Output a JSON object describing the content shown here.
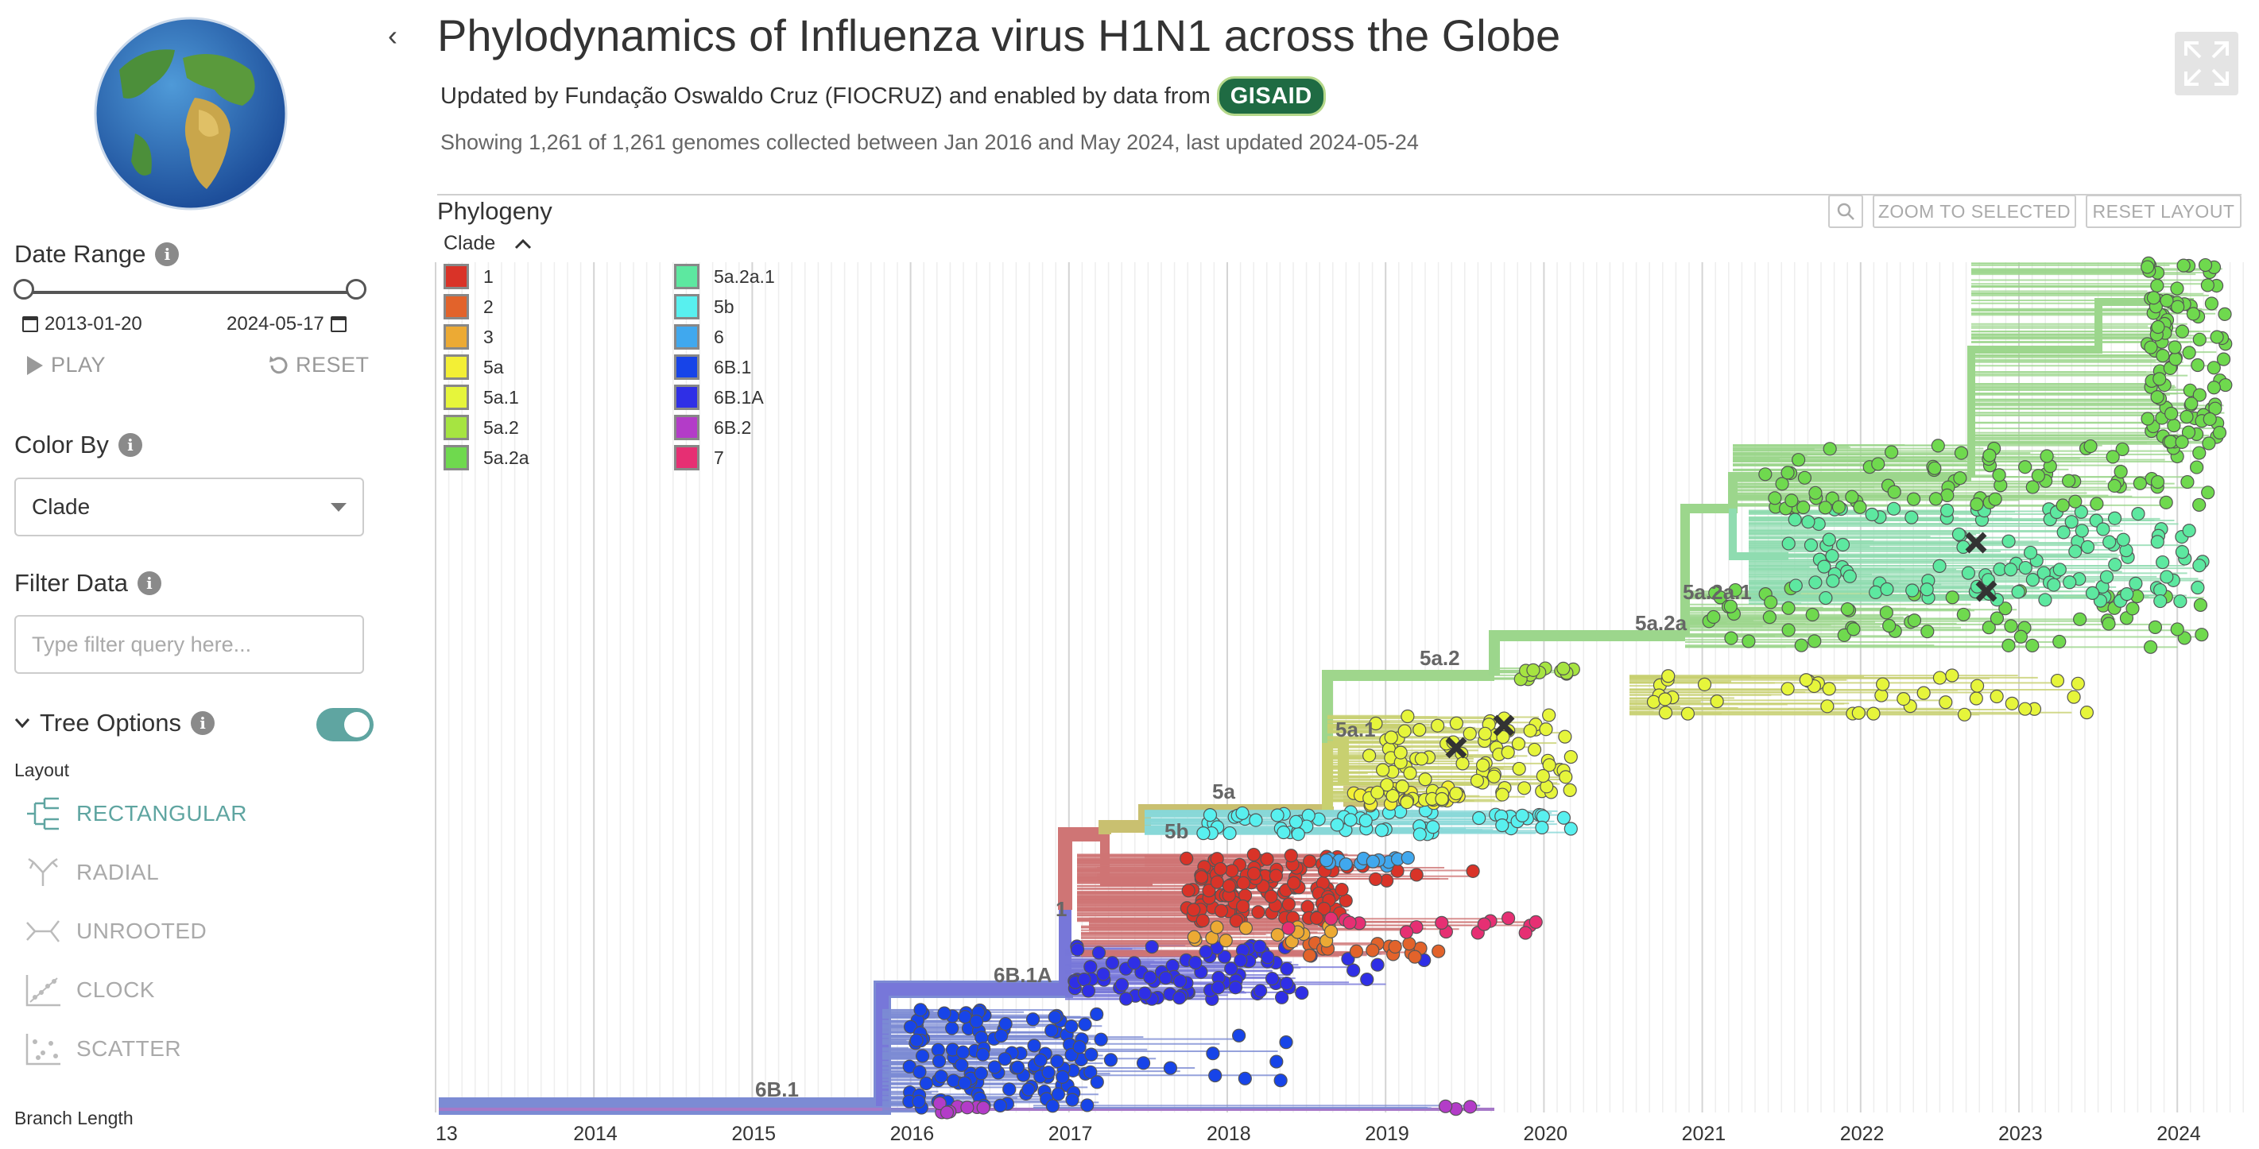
{
  "sidebar": {
    "date_range_heading": "Date Range",
    "date_start": "2013-01-20",
    "date_end": "2024-05-17",
    "play_label": "PLAY",
    "reset_label": "RESET",
    "color_by_heading": "Color By",
    "color_by_value": "Clade",
    "filter_heading": "Filter Data",
    "filter_placeholder": "Type filter query here...",
    "tree_options_heading": "Tree Options",
    "tree_options_toggle": true,
    "layout_label": "Layout",
    "layouts": [
      {
        "label": "RECTANGULAR",
        "icon": "rectangular-tree-icon",
        "active": true
      },
      {
        "label": "RADIAL",
        "icon": "radial-tree-icon",
        "active": false
      },
      {
        "label": "UNROOTED",
        "icon": "unrooted-tree-icon",
        "active": false
      },
      {
        "label": "CLOCK",
        "icon": "clock-plot-icon",
        "active": false
      },
      {
        "label": "SCATTER",
        "icon": "scatter-plot-icon",
        "active": false
      }
    ],
    "branch_length_label": "Branch Length"
  },
  "header": {
    "title": "Phylodynamics of Influenza virus H1N1 across the Globe",
    "subtitle": "Updated by Fundação Oswaldo Cruz (FIOCRUZ) and enabled by data from",
    "gisaid_logo": "GISAID",
    "info": "Showing 1,261 of 1,261 genomes collected between Jan 2016 and May 2024, last updated 2024-05-24"
  },
  "panel": {
    "title": "Phylogeny",
    "zoom_to_selected": "ZOOM TO SELECTED",
    "reset_layout": "RESET LAYOUT",
    "legend_title": "Clade",
    "legend": [
      {
        "label": "1",
        "color": "#d93328"
      },
      {
        "label": "2",
        "color": "#e2632b"
      },
      {
        "label": "3",
        "color": "#ecaa34"
      },
      {
        "label": "5a",
        "color": "#f3ef35"
      },
      {
        "label": "5a.1",
        "color": "#e6f53b"
      },
      {
        "label": "5a.2",
        "color": "#a6e441"
      },
      {
        "label": "5a.2a",
        "color": "#6fd94e"
      },
      {
        "label": "5a.2a.1",
        "color": "#5de8a0"
      },
      {
        "label": "5b",
        "color": "#58f0ef"
      },
      {
        "label": "6",
        "color": "#40a8ee"
      },
      {
        "label": "6B.1",
        "color": "#1744e8"
      },
      {
        "label": "6B.1A",
        "color": "#2f2fe6"
      },
      {
        "label": "6B.2",
        "color": "#b33cc8"
      },
      {
        "label": "7",
        "color": "#e62f73"
      }
    ],
    "axis_labels": [
      "13",
      "2014",
      "2015",
      "2016",
      "2017",
      "2018",
      "2019",
      "2020",
      "2021",
      "2022",
      "2023",
      "2024"
    ],
    "clade_labels": [
      "5a.2a.1",
      "5a.2a",
      "5a.2",
      "5a.1",
      "5a",
      "5b",
      "1",
      "6B.1A",
      "6B.1"
    ]
  }
}
